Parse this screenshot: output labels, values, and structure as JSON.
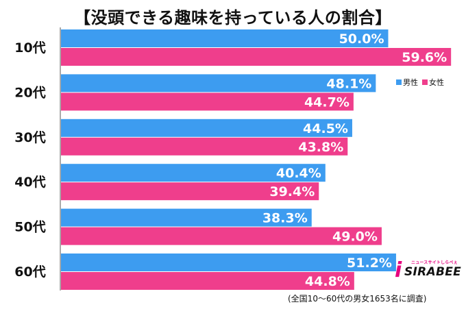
{
  "title": "【没頭できる趣味を持っている人の割合】",
  "chart_data": {
    "type": "bar",
    "orientation": "horizontal",
    "title": "【没頭できる趣味を持っている人の割合】",
    "categories": [
      "10代",
      "20代",
      "30代",
      "40代",
      "50代",
      "60代"
    ],
    "series": [
      {
        "name": "男性",
        "color": "#3d9cf0",
        "values": [
          50.0,
          48.1,
          44.5,
          40.4,
          38.3,
          51.2
        ]
      },
      {
        "name": "女性",
        "color": "#ef3e8c",
        "values": [
          59.6,
          44.7,
          43.8,
          39.4,
          49.0,
          44.8
        ]
      }
    ],
    "value_labels": {
      "男性": [
        "50.0%",
        "48.1%",
        "44.5%",
        "40.4%",
        "38.3%",
        "51.2%"
      ],
      "女性": [
        "59.6%",
        "44.7%",
        "43.8%",
        "39.4%",
        "49.0%",
        "44.8%"
      ]
    },
    "xlim": [
      0,
      60
    ],
    "xlabel": "",
    "ylabel": "",
    "legend": "right"
  },
  "legend": {
    "male_label": "男性",
    "female_label": "女性",
    "male_color": "#3d9cf0",
    "female_color": "#ef3e8c"
  },
  "logo": {
    "mark": "i",
    "text": "SIRABEE",
    "sub": "ニュースサイトしらべぇ"
  },
  "footnote": "(全国10〜60代の男女1653名に調査)"
}
